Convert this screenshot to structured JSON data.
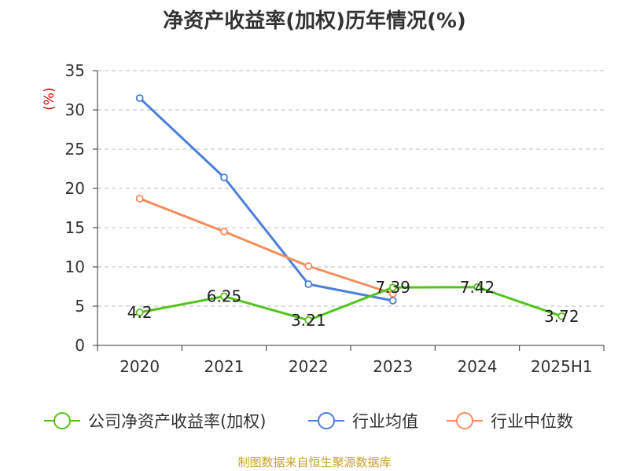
{
  "title": "净资产收益率(加权)历年情况(%)",
  "footer": "制图数据来自恒生聚源数据库",
  "colors": {
    "axis": "#333333",
    "grid": "#bbbbbb",
    "text": "#333333",
    "unit": "#cc0000",
    "footer": "#c9a227"
  },
  "chart_data": {
    "type": "line",
    "title": "净资产收益率(加权)历年情况(%)",
    "ylabel": "(%)",
    "ylim": [
      0,
      35
    ],
    "yticks": [
      0,
      5,
      10,
      15,
      20,
      25,
      30,
      35
    ],
    "grid": true,
    "legend_position": "bottom",
    "categories": [
      "2020",
      "2021",
      "2022",
      "2023",
      "2024",
      "2025H1"
    ],
    "series": [
      {
        "name": "公司净资产收益率(加权)",
        "color": "#52c41a",
        "values": [
          4.2,
          6.25,
          3.21,
          7.39,
          7.42,
          3.72
        ],
        "labels": [
          "4.2",
          "6.25",
          "3.21",
          "7.39",
          "7.42",
          "3.72"
        ],
        "show_labels": true
      },
      {
        "name": "行业均值",
        "color": "#4a7fdb",
        "values": [
          31.5,
          21.4,
          7.8,
          5.7,
          null,
          null
        ],
        "show_labels": false
      },
      {
        "name": "行业中位数",
        "color": "#f68c5a",
        "values": [
          18.7,
          14.5,
          10.1,
          6.6,
          null,
          null
        ],
        "show_labels": false
      }
    ]
  }
}
